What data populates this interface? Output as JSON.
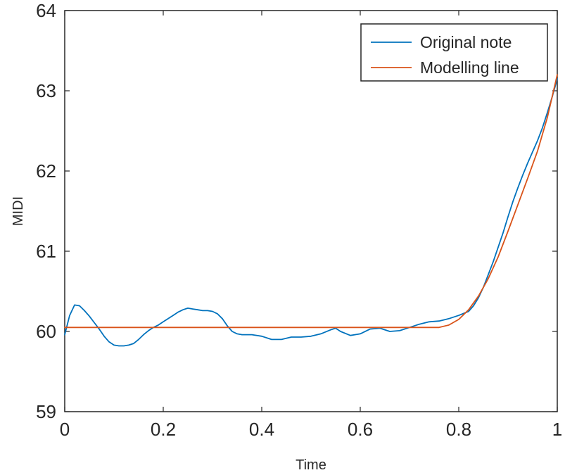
{
  "chart_data": {
    "type": "line",
    "xlabel": "Time",
    "ylabel": "MIDI",
    "xlim": [
      0,
      1
    ],
    "ylim": [
      59,
      64
    ],
    "x_ticks": [
      0,
      0.2,
      0.4,
      0.6,
      0.8,
      1
    ],
    "x_tick_labels": [
      "0",
      "0.2",
      "0.4",
      "0.6",
      "0.8",
      "1"
    ],
    "y_ticks": [
      59,
      60,
      61,
      62,
      63,
      64
    ],
    "y_tick_labels": [
      "59",
      "60",
      "61",
      "62",
      "63",
      "64"
    ],
    "grid": false,
    "legend_position": "top-right",
    "series": [
      {
        "name": "Original note",
        "color": "#0072BD",
        "x": [
          0,
          0.01,
          0.02,
          0.03,
          0.04,
          0.05,
          0.06,
          0.07,
          0.08,
          0.09,
          0.1,
          0.11,
          0.12,
          0.13,
          0.14,
          0.15,
          0.16,
          0.17,
          0.18,
          0.19,
          0.2,
          0.21,
          0.22,
          0.23,
          0.24,
          0.25,
          0.26,
          0.27,
          0.28,
          0.29,
          0.3,
          0.31,
          0.32,
          0.33,
          0.34,
          0.35,
          0.36,
          0.38,
          0.4,
          0.42,
          0.44,
          0.46,
          0.48,
          0.5,
          0.52,
          0.54,
          0.55,
          0.56,
          0.58,
          0.6,
          0.62,
          0.64,
          0.66,
          0.68,
          0.7,
          0.72,
          0.74,
          0.76,
          0.78,
          0.8,
          0.82,
          0.83,
          0.84,
          0.85,
          0.86,
          0.87,
          0.88,
          0.89,
          0.9,
          0.91,
          0.92,
          0.93,
          0.94,
          0.95,
          0.96,
          0.97,
          0.98,
          0.99,
          1.0
        ],
        "y": [
          59.96,
          60.2,
          60.33,
          60.32,
          60.26,
          60.19,
          60.11,
          60.03,
          59.94,
          59.87,
          59.83,
          59.82,
          59.82,
          59.83,
          59.85,
          59.9,
          59.96,
          60.01,
          60.05,
          60.08,
          60.12,
          60.16,
          60.2,
          60.24,
          60.27,
          60.29,
          60.28,
          60.27,
          60.26,
          60.26,
          60.25,
          60.22,
          60.16,
          60.07,
          60.0,
          59.97,
          59.96,
          59.96,
          59.94,
          59.9,
          59.9,
          59.93,
          59.93,
          59.94,
          59.97,
          60.02,
          60.04,
          60.0,
          59.95,
          59.97,
          60.03,
          60.04,
          60.0,
          60.01,
          60.05,
          60.09,
          60.12,
          60.13,
          60.16,
          60.2,
          60.25,
          60.32,
          60.42,
          60.55,
          60.71,
          60.87,
          61.05,
          61.23,
          61.43,
          61.62,
          61.79,
          61.95,
          62.1,
          62.24,
          62.38,
          62.54,
          62.73,
          62.93,
          63.15
        ]
      },
      {
        "name": "Modelling line",
        "color": "#D95319",
        "x": [
          0,
          0.1,
          0.2,
          0.3,
          0.4,
          0.5,
          0.6,
          0.7,
          0.76,
          0.78,
          0.8,
          0.82,
          0.84,
          0.86,
          0.88,
          0.9,
          0.92,
          0.94,
          0.96,
          0.98,
          1.0
        ],
        "y": [
          60.05,
          60.05,
          60.05,
          60.05,
          60.05,
          60.05,
          60.05,
          60.05,
          60.05,
          60.08,
          60.15,
          60.27,
          60.44,
          60.66,
          60.93,
          61.25,
          61.58,
          61.91,
          62.25,
          62.67,
          63.2
        ]
      }
    ]
  }
}
